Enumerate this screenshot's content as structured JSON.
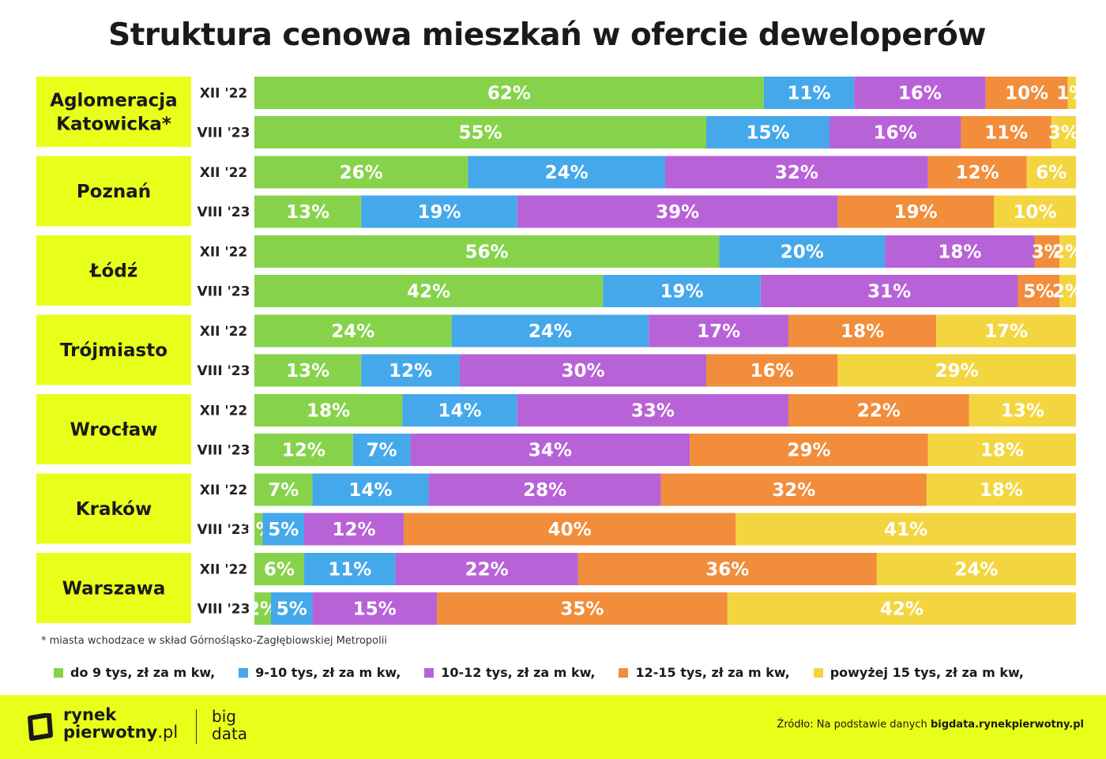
{
  "title": "Struktura cenowa mieszkań w ofercie deweloperów",
  "footnote": "* miasta wchodzace w skład Górnośląsko-Zagłębiowskiej Metropolii",
  "legend": [
    {
      "label": "do 9 tys, zł za m kw,",
      "color": "#86d34b"
    },
    {
      "label": "9-10 tys, zł za m kw,",
      "color": "#45a8ea"
    },
    {
      "label": "10-12 tys, zł za m kw,",
      "color": "#b862d8"
    },
    {
      "label": "12-15 tys, zł za m kw,",
      "color": "#f18d3b"
    },
    {
      "label": "powyżej 15 tys, zł za m kw,",
      "color": "#f3d63f"
    }
  ],
  "chart_data": {
    "type": "bar",
    "orientation": "horizontal-stacked-100",
    "series": [
      {
        "name": "do 9 tys, zł za m kw,",
        "color": "#86d34b"
      },
      {
        "name": "9-10 tys, zł za m kw,",
        "color": "#45a8ea"
      },
      {
        "name": "10-12 tys, zł za m kw,",
        "color": "#b862d8"
      },
      {
        "name": "12-15 tys, zł za m kw,",
        "color": "#f18d3b"
      },
      {
        "name": "powyżej 15 tys, zł za m kw,",
        "color": "#f3d63f"
      }
    ],
    "groups": [
      {
        "city": [
          "Aglomeracja",
          "Katowicka*"
        ],
        "rows": [
          {
            "period": "XII '22",
            "values": [
              62,
              11,
              16,
              10,
              1
            ]
          },
          {
            "period": "VIII '23",
            "values": [
              55,
              15,
              16,
              11,
              3
            ]
          }
        ]
      },
      {
        "city": [
          "Poznań"
        ],
        "rows": [
          {
            "period": "XII '22",
            "values": [
              26,
              24,
              32,
              12,
              6
            ]
          },
          {
            "period": "VIII '23",
            "values": [
              13,
              19,
              39,
              19,
              10
            ]
          }
        ]
      },
      {
        "city": [
          "Łódź"
        ],
        "rows": [
          {
            "period": "XII '22",
            "values": [
              56,
              20,
              18,
              3,
              2
            ]
          },
          {
            "period": "VIII '23",
            "values": [
              42,
              19,
              31,
              5,
              2
            ]
          }
        ]
      },
      {
        "city": [
          "Trójmiasto"
        ],
        "rows": [
          {
            "period": "XII '22",
            "values": [
              24,
              24,
              17,
              18,
              17
            ]
          },
          {
            "period": "VIII '23",
            "values": [
              13,
              12,
              30,
              16,
              29
            ]
          }
        ]
      },
      {
        "city": [
          "Wrocław"
        ],
        "rows": [
          {
            "period": "XII '22",
            "values": [
              18,
              14,
              33,
              22,
              13
            ]
          },
          {
            "period": "VIII '23",
            "values": [
              12,
              7,
              34,
              29,
              18
            ]
          }
        ]
      },
      {
        "city": [
          "Kraków"
        ],
        "rows": [
          {
            "period": "XII '22",
            "values": [
              7,
              14,
              28,
              32,
              18
            ]
          },
          {
            "period": "VIII '23",
            "values": [
              1,
              5,
              12,
              40,
              41
            ]
          }
        ]
      },
      {
        "city": [
          "Warszawa"
        ],
        "rows": [
          {
            "period": "XII '22",
            "values": [
              6,
              11,
              22,
              36,
              24
            ]
          },
          {
            "period": "VIII '23",
            "values": [
              2,
              5,
              15,
              35,
              42
            ]
          }
        ]
      }
    ],
    "value_suffix": "%"
  },
  "footer": {
    "logo_line1": "rynek",
    "logo_line2": "pierwotny",
    "logo_suffix": ".pl",
    "bigdata_line1": "big",
    "bigdata_line2": "data",
    "source_prefix": "Źródło: Na podstawie danych",
    "source_link": "bigdata.rynekpierwotny.pl"
  }
}
